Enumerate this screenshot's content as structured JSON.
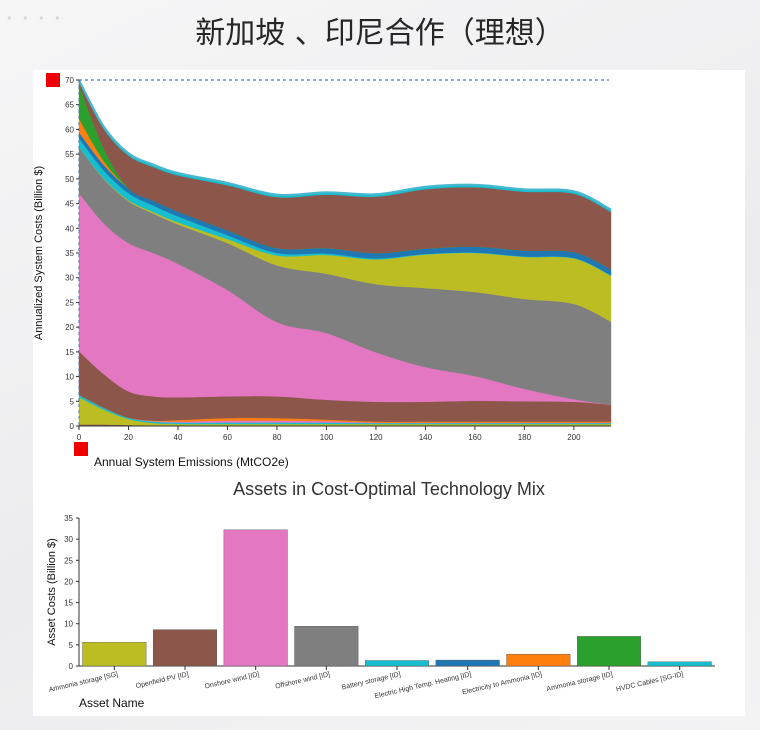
{
  "slide": {
    "title": "新加坡 、印尼合作（理想）"
  },
  "chart_data": [
    {
      "type": "area",
      "stacked": true,
      "xlabel": "Annual System Emissions (MtCO2e)",
      "ylabel": "Annualized System Costs (Billion $)",
      "xlim": [
        0,
        215
      ],
      "ylim": [
        0,
        70
      ],
      "x": [
        0,
        10,
        20,
        30,
        40,
        60,
        80,
        100,
        120,
        140,
        160,
        180,
        200,
        215
      ],
      "xticks": [
        0,
        20,
        40,
        60,
        80,
        100,
        120,
        140,
        160,
        180,
        200
      ],
      "yticks": [
        0,
        5,
        10,
        15,
        20,
        25,
        30,
        35,
        40,
        45,
        50,
        55,
        60,
        65,
        70
      ],
      "series": [
        {
          "key": "offshore-wind-sg",
          "color": "#8c564b",
          "values": [
            0.3,
            0.3,
            0.2,
            0.1,
            0.1,
            0.1,
            0.1,
            0.1,
            0.1,
            0.1,
            0.1,
            0.1,
            0.1,
            0.1
          ]
        },
        {
          "key": "ammonia-storage-sg",
          "color": "#bcbd22",
          "values": [
            5.5,
            3.0,
            1.2,
            0.5,
            0.3,
            0.3,
            0.3,
            0.3,
            0.3,
            0.3,
            0.3,
            0.3,
            0.3,
            0.3
          ]
        },
        {
          "key": "battery-storage-sg",
          "color": "#17becf",
          "values": [
            0.5,
            0.4,
            0.3,
            0.3,
            0.3,
            0.3,
            0.3,
            0.3,
            0.2,
            0.2,
            0.2,
            0.2,
            0.2,
            0.2
          ]
        },
        {
          "key": "onshore-wind-sg",
          "color": "#e377c2",
          "values": [
            0.0,
            0.0,
            0.0,
            0.1,
            0.2,
            0.4,
            0.4,
            0.3,
            0.1,
            0.1,
            0.1,
            0.1,
            0.1,
            0.1
          ]
        },
        {
          "key": "electricity-to-ammonia-sg",
          "color": "#ff7f0e",
          "values": [
            0.0,
            0.0,
            0.0,
            0.1,
            0.3,
            0.5,
            0.5,
            0.3,
            0.2,
            0.2,
            0.2,
            0.2,
            0.2,
            0.2
          ]
        },
        {
          "key": "openfield-pv-id",
          "color": "#8c564b",
          "values": [
            8.8,
            6.8,
            5.3,
            4.9,
            4.6,
            4.4,
            4.4,
            4.0,
            4.0,
            4.0,
            4.2,
            4.1,
            4.0,
            3.4
          ]
        },
        {
          "key": "onshore-wind-id",
          "color": "#e377c2",
          "values": [
            32.0,
            30.5,
            30.0,
            29.0,
            27.0,
            21.5,
            15.0,
            13.5,
            10.0,
            7.0,
            5.0,
            2.5,
            0.5,
            0.0
          ]
        },
        {
          "key": "offshore-wind-id",
          "color": "#7f7f7f",
          "values": [
            9.3,
            9.0,
            8.5,
            8.0,
            8.0,
            9.5,
            11.5,
            12.0,
            13.8,
            16.0,
            17.0,
            18.2,
            19.3,
            16.8
          ]
        },
        {
          "key": "ammonia-storage-id",
          "color": "#bcbd22",
          "values": [
            0.0,
            0.1,
            0.2,
            0.3,
            0.4,
            0.8,
            2.0,
            3.8,
            5.0,
            6.8,
            7.9,
            8.5,
            9.2,
            9.3
          ]
        },
        {
          "key": "battery-storage-id",
          "color": "#17becf",
          "values": [
            1.8,
            1.6,
            1.4,
            1.3,
            1.2,
            0.8,
            0.5,
            0.3,
            0.2,
            0.1,
            0.1,
            0.1,
            0.1,
            0.1
          ]
        },
        {
          "key": "electric-high-temp-heating-id",
          "color": "#1f77b4",
          "values": [
            1.2,
            1.1,
            1.0,
            1.0,
            1.0,
            1.0,
            1.0,
            1.1,
            1.1,
            1.1,
            1.2,
            1.2,
            1.2,
            1.2
          ]
        },
        {
          "key": "electricity-to-ammonia-id",
          "color": "#ff7f0e",
          "values": [
            2.8,
            0.8,
            0.0,
            0.0,
            0.0,
            0.0,
            0.0,
            0.0,
            0.0,
            0.0,
            0.0,
            0.0,
            0.0,
            0.0
          ]
        },
        {
          "key": "ammonia-storage-id-green",
          "color": "#2ca02c",
          "values": [
            6.8,
            2.5,
            0.0,
            0.0,
            0.0,
            0.0,
            0.0,
            0.0,
            0.0,
            0.0,
            0.0,
            0.0,
            0.0,
            0.0
          ]
        },
        {
          "key": "hvdc-cables",
          "color": "#8c564b",
          "values": [
            0.5,
            4.0,
            6.6,
            6.8,
            7.3,
            9.1,
            10.3,
            10.8,
            11.4,
            12.0,
            12.0,
            11.9,
            11.8,
            11.6
          ]
        },
        {
          "key": "hvdc-cables-top",
          "color": "#17becf",
          "values": [
            0.5,
            0.5,
            0.5,
            0.5,
            0.5,
            0.5,
            0.5,
            0.5,
            0.5,
            0.5,
            0.5,
            0.5,
            0.5,
            0.5
          ]
        }
      ],
      "reference_line_y": 70
    },
    {
      "type": "bar",
      "title": "Assets in Cost-Optimal Technology Mix",
      "xlabel": "Asset Name",
      "ylabel": "Asset Costs (Billion $)",
      "ylim": [
        0,
        35
      ],
      "yticks": [
        0,
        5,
        10,
        15,
        20,
        25,
        30,
        35
      ],
      "categories": [
        "Ammonia storage [SG]",
        "Openfield PV [ID]",
        "Onshore wind [ID]",
        "Offshore wind [ID]",
        "Battery storage [ID]",
        "Electric High Temp. Heating [ID]",
        "Electricity to Ammonia [ID]",
        "Ammonia storage [ID]",
        "HVDC Cables [SG-ID]"
      ],
      "values": [
        5.6,
        8.6,
        32.2,
        9.4,
        1.3,
        1.4,
        2.8,
        7.0,
        1.0
      ],
      "colors": [
        "#bcbd22",
        "#8c564b",
        "#e377c2",
        "#7f7f7f",
        "#17becf",
        "#1f77b4",
        "#ff7f0e",
        "#2ca02c",
        "#17becf"
      ]
    }
  ]
}
